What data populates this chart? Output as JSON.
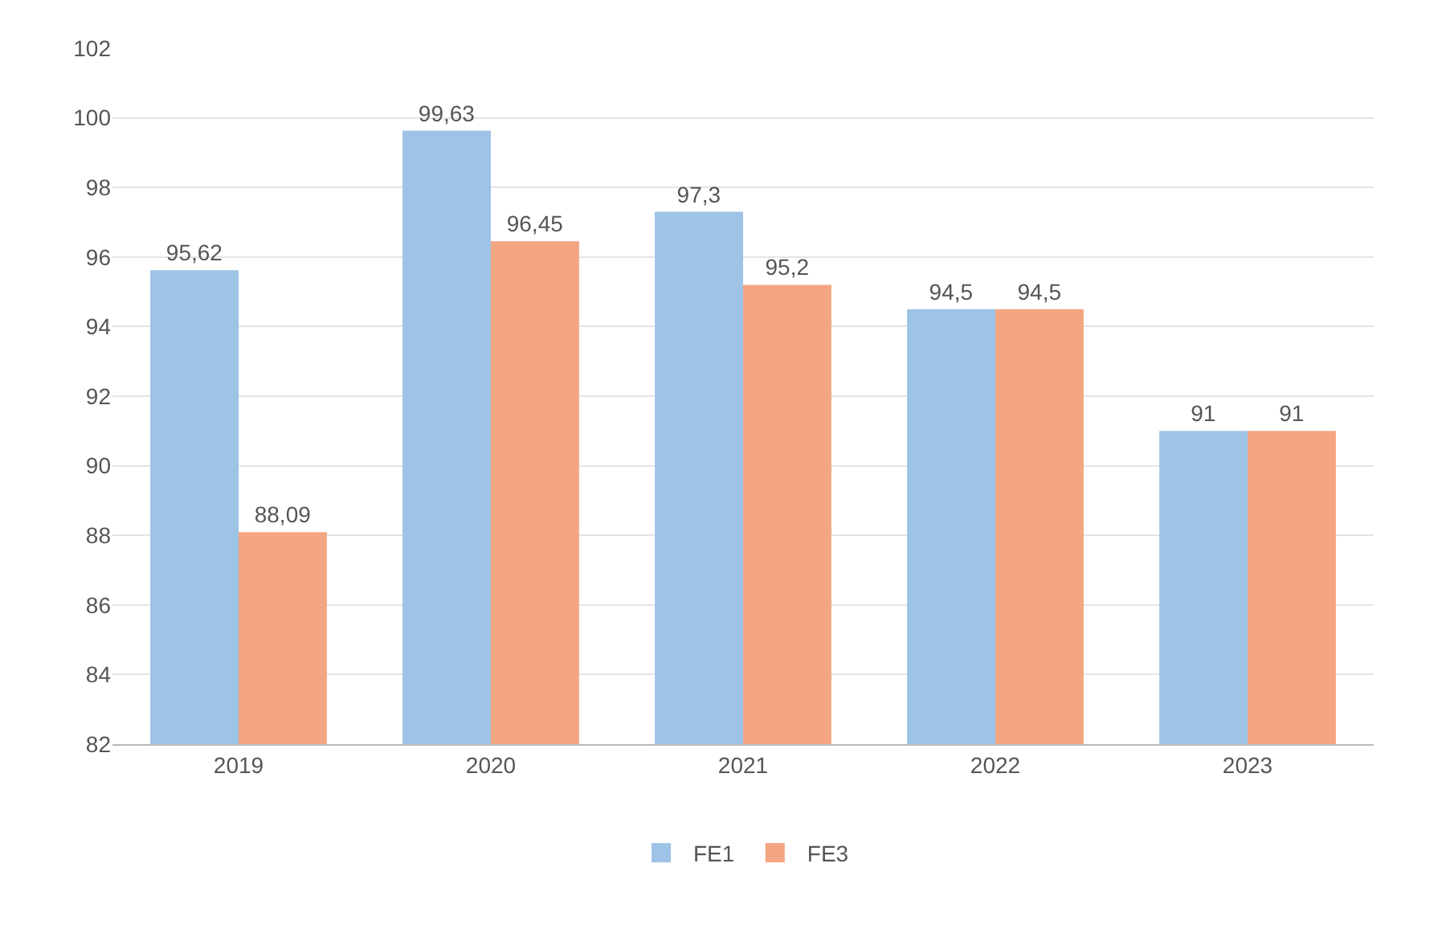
{
  "chart_data": {
    "type": "bar",
    "categories": [
      "2019",
      "2020",
      "2021",
      "2022",
      "2023"
    ],
    "series": [
      {
        "name": "FE1",
        "color": "#9dc3e6",
        "values": [
          95.62,
          99.63,
          97.3,
          94.5,
          91
        ],
        "value_labels": [
          "95,62",
          "99,63",
          "97,3",
          "94,5",
          "91"
        ]
      },
      {
        "name": "FE3",
        "color": "#f4a582",
        "values": [
          88.09,
          96.45,
          95.2,
          94.5,
          91
        ],
        "value_labels": [
          "88,09",
          "96,45",
          "95,2",
          "94,5",
          "91"
        ]
      }
    ],
    "ylim": [
      82,
      102
    ],
    "yticks": [
      82,
      84,
      86,
      88,
      90,
      92,
      94,
      96,
      98,
      100,
      102
    ],
    "grid": "y",
    "legend": "bottom"
  }
}
